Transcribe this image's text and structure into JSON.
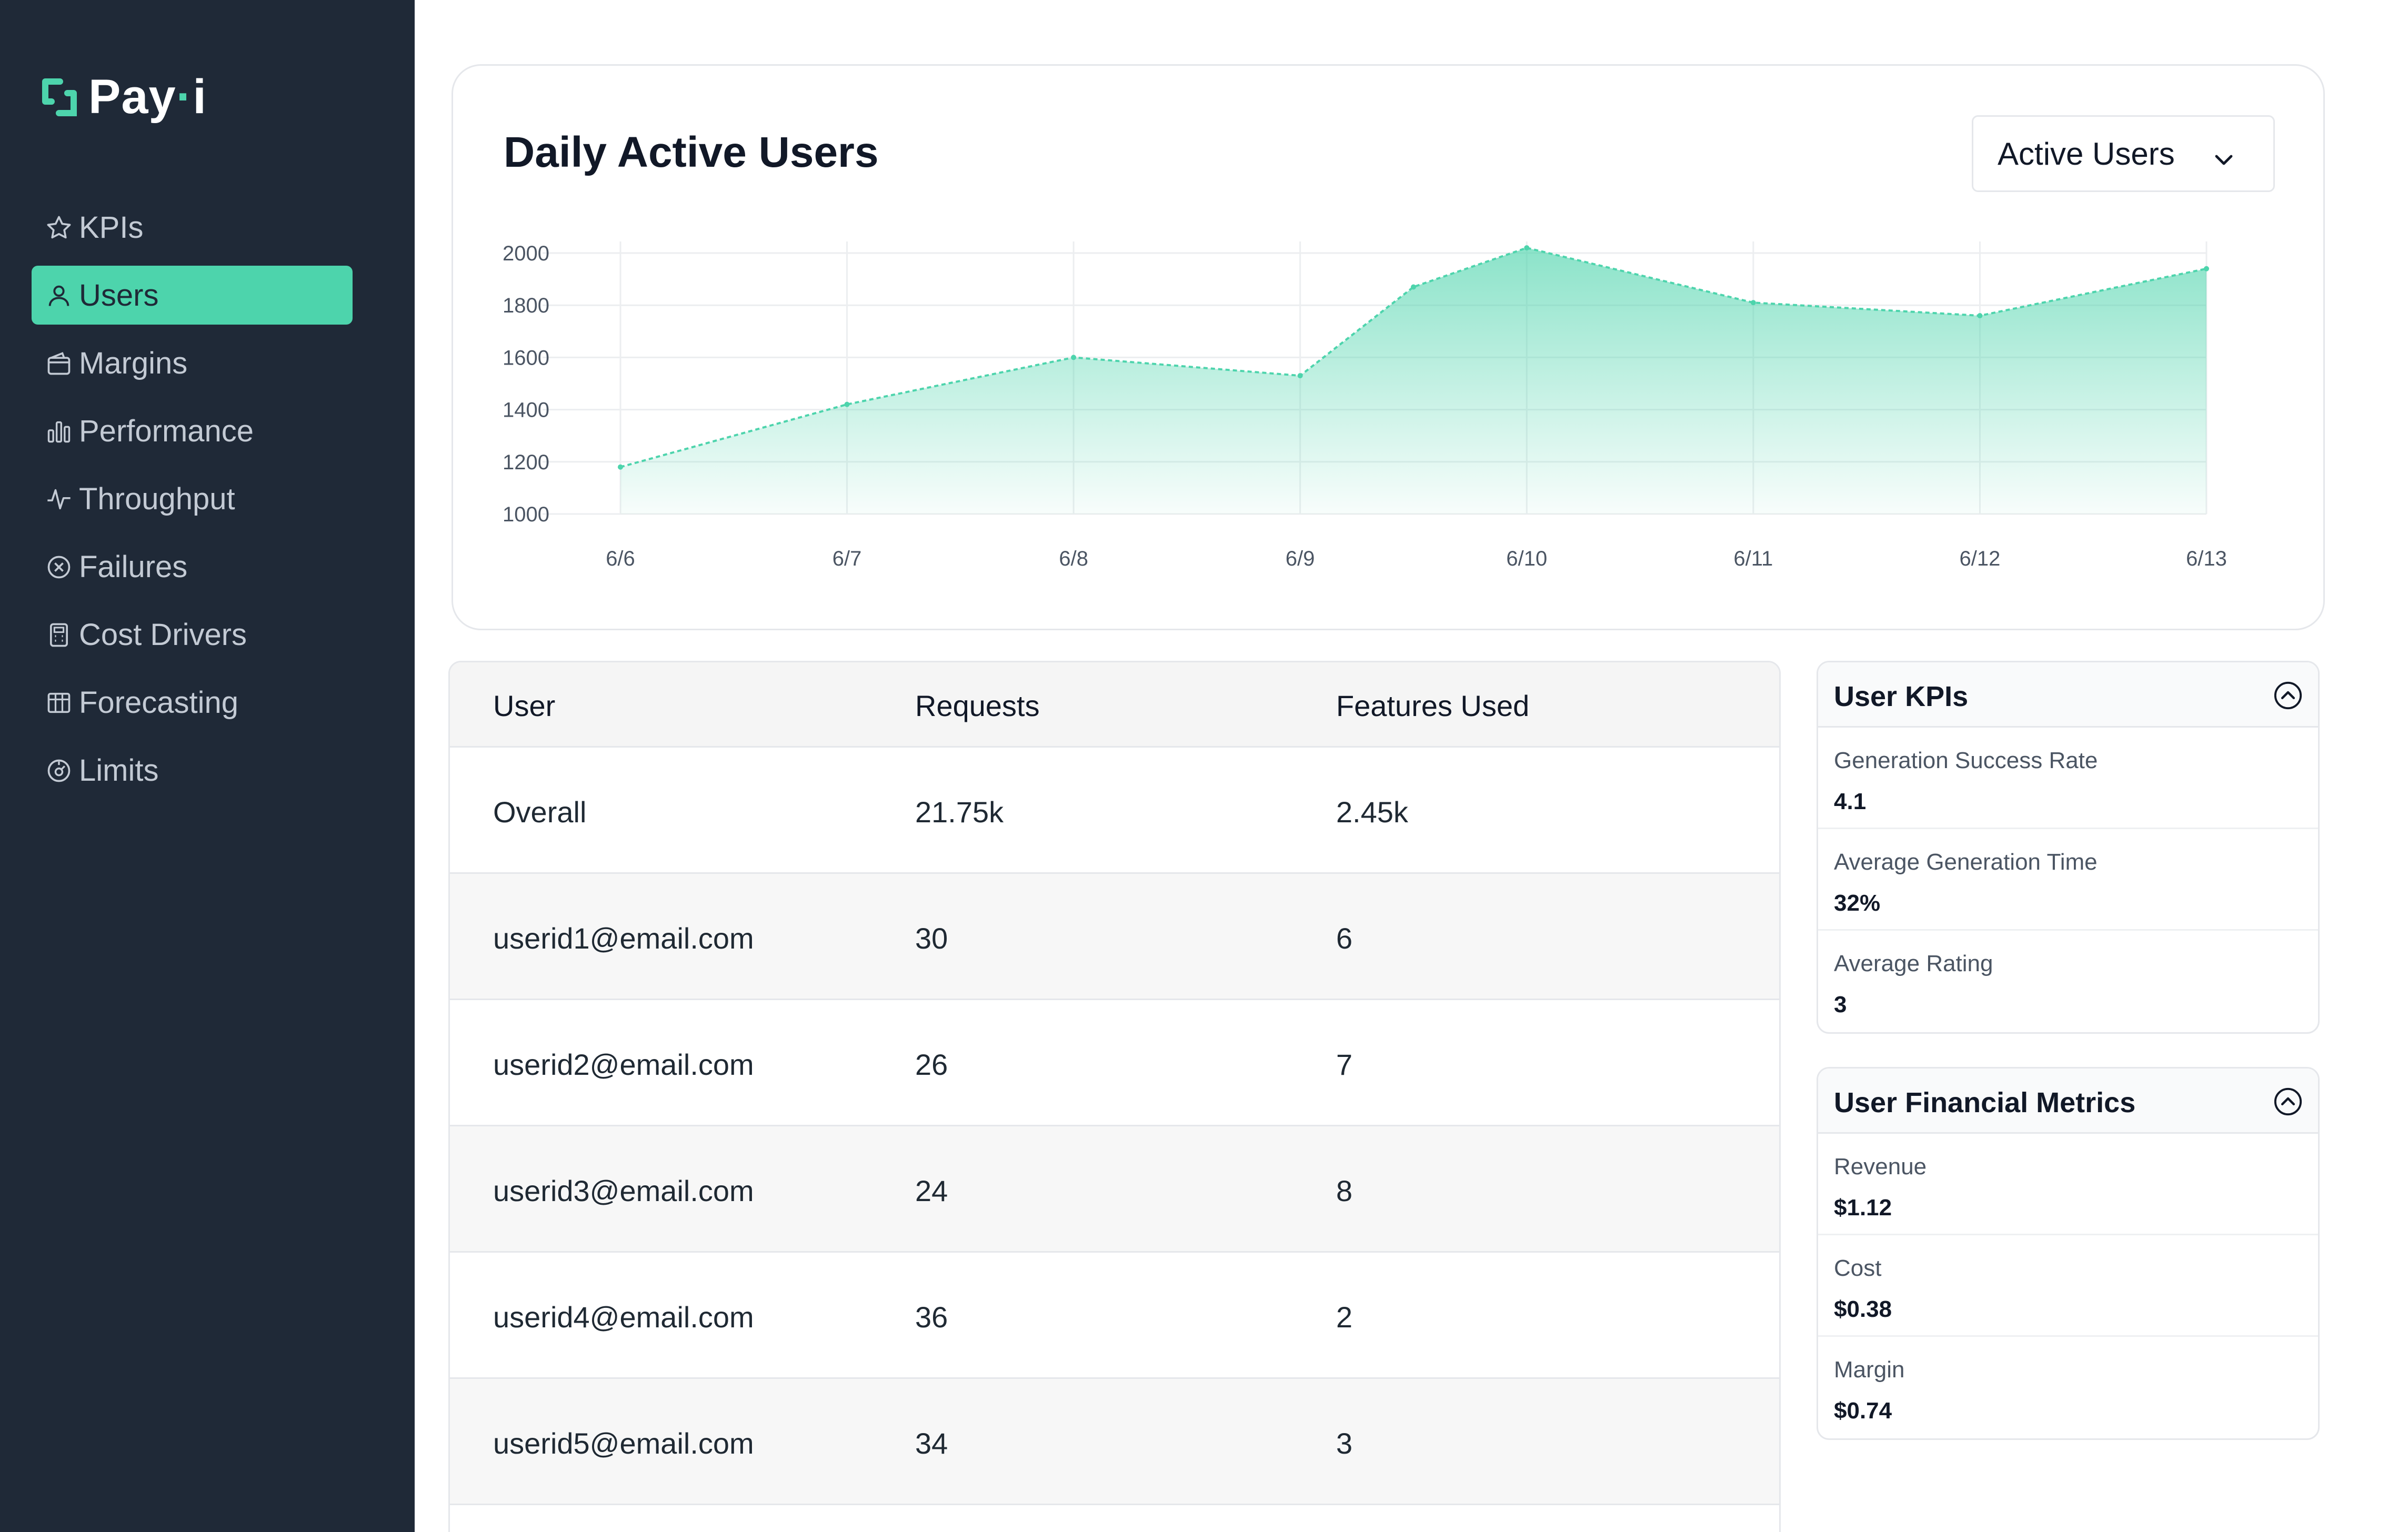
{
  "brand": {
    "name_main": "Pay",
    "name_dot": "·",
    "name_end": "i",
    "accent": "#4dd4ac"
  },
  "sidebar": {
    "items": [
      {
        "label": "KPIs",
        "icon": "star-icon",
        "active": false
      },
      {
        "label": "Users",
        "icon": "user-icon",
        "active": true
      },
      {
        "label": "Margins",
        "icon": "wallet-icon",
        "active": false
      },
      {
        "label": "Performance",
        "icon": "bar-chart-icon",
        "active": false
      },
      {
        "label": "Throughput",
        "icon": "pulse-icon",
        "active": false
      },
      {
        "label": "Failures",
        "icon": "x-circle-icon",
        "active": false
      },
      {
        "label": "Cost Drivers",
        "icon": "calculator-icon",
        "active": false
      },
      {
        "label": "Forecasting",
        "icon": "table-grid-icon",
        "active": false
      },
      {
        "label": "Limits",
        "icon": "gauge-icon",
        "active": false
      }
    ]
  },
  "chart_card": {
    "title": "Daily Active Users",
    "select_value": "Active Users"
  },
  "chart_data": {
    "type": "area",
    "x": [
      "6/6",
      "6/7",
      "6/8",
      "6/9",
      "6/10",
      "6/11",
      "6/12",
      "6/13"
    ],
    "points": [
      {
        "x": "6/6",
        "y": 1180
      },
      {
        "x": "6/7",
        "y": 1420
      },
      {
        "x": "6/8",
        "y": 1600
      },
      {
        "x": "6/9",
        "y": 1530
      },
      {
        "x": "6/9.5",
        "y": 1870
      },
      {
        "x": "6/10",
        "y": 2020
      },
      {
        "x": "6/11",
        "y": 1810
      },
      {
        "x": "6/12",
        "y": 1760
      },
      {
        "x": "6/13",
        "y": 1940
      }
    ],
    "y_ticks": [
      2000,
      1800,
      1600,
      1400,
      1200,
      1000
    ],
    "ylim": [
      1000,
      2000
    ],
    "grid": true,
    "color": "#4dd4ac"
  },
  "table": {
    "headers": [
      "User",
      "Requests",
      "Features Used"
    ],
    "rows": [
      [
        "Overall",
        "21.75k",
        "2.45k"
      ],
      [
        "userid1@email.com",
        "30",
        "6"
      ],
      [
        "userid2@email.com",
        "26",
        "7"
      ],
      [
        "userid3@email.com",
        "24",
        "8"
      ],
      [
        "userid4@email.com",
        "36",
        "2"
      ],
      [
        "userid5@email.com",
        "34",
        "3"
      ]
    ]
  },
  "kpi_panel": {
    "title": "User KPIs",
    "metrics": [
      {
        "label": "Generation Success Rate",
        "value": "4.1"
      },
      {
        "label": "Average Generation Time",
        "value": "32%"
      },
      {
        "label": "Average Rating",
        "value": "3"
      }
    ]
  },
  "financial_panel": {
    "title": "User Financial Metrics",
    "metrics": [
      {
        "label": "Revenue",
        "value": "$1.12"
      },
      {
        "label": "Cost",
        "value": "$0.38"
      },
      {
        "label": "Margin",
        "value": "$0.74"
      }
    ]
  }
}
